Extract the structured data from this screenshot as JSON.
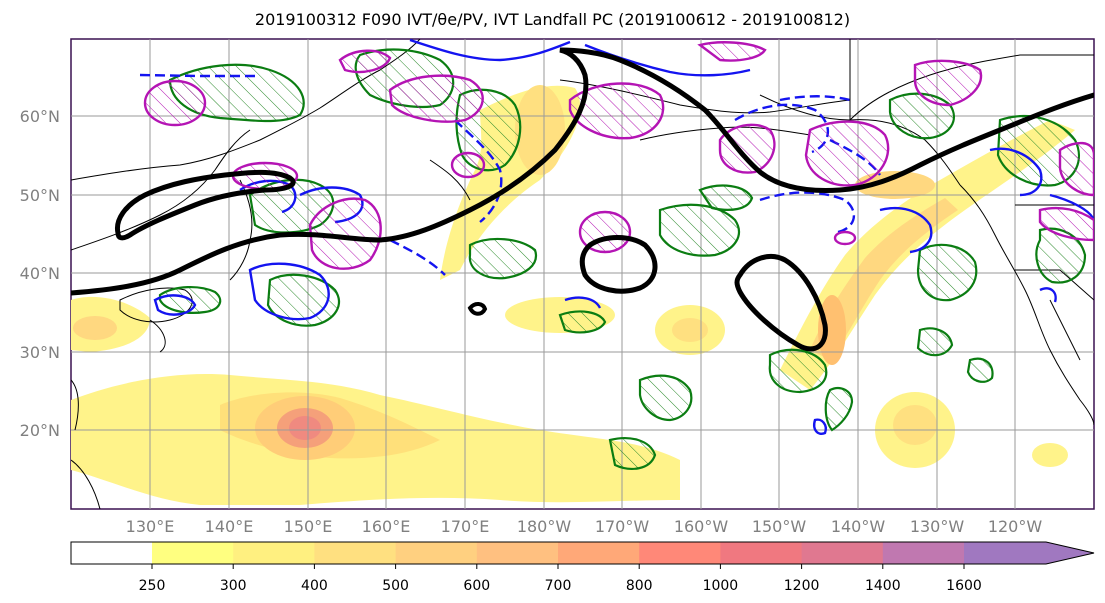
{
  "title": "2019100312 F090 IVT/θe/PV, IVT Landfall PC (2019100612 - 2019100812)",
  "latitude_labels": [
    "60°N",
    "50°N",
    "40°N",
    "30°N",
    "20°N"
  ],
  "longitude_labels": [
    "130°E",
    "140°E",
    "150°E",
    "160°E",
    "170°E",
    "180°W",
    "170°W",
    "160°W",
    "150°W",
    "140°W",
    "130°W",
    "120°W"
  ],
  "colorbar": {
    "levels": [
      "250",
      "300",
      "400",
      "500",
      "600",
      "700",
      "800",
      "1000",
      "1200",
      "1400",
      "1600"
    ],
    "colors": [
      "#ffff80",
      "#fff080",
      "#ffe080",
      "#ffd080",
      "#ffc080",
      "#ffa878",
      "#ff8878",
      "#f07880",
      "#e07890",
      "#c078b0",
      "#a078c0"
    ]
  },
  "colors": {
    "ivt_low": "#fff38a",
    "ivt_mid": "#ffc36e",
    "ivt_high": "#f08a80",
    "pv_contour": "#0b7d12",
    "theta_contour": "#1414f0",
    "landfall_pc": "#b414b4",
    "black_contour": "#000000",
    "grid": "#9a9a9a"
  }
}
